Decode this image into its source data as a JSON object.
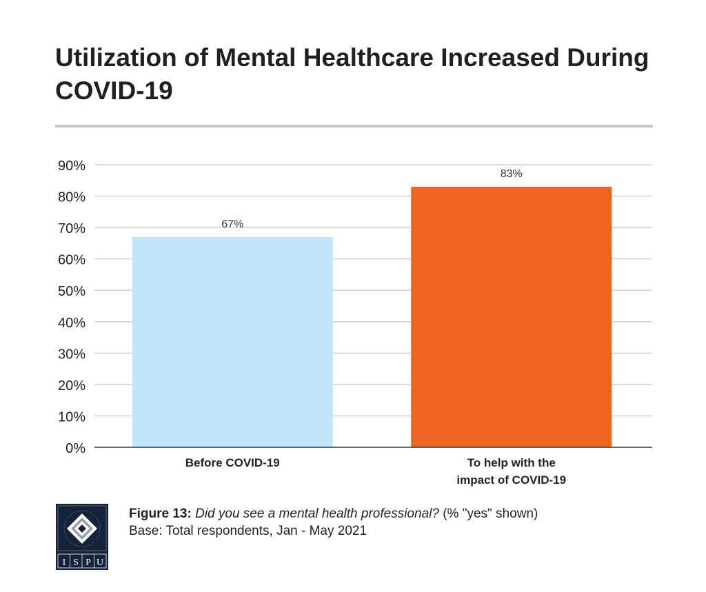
{
  "chart_data": {
    "type": "bar",
    "title": "Utilization of Mental Healthcare Increased During COVID-19",
    "categories": [
      [
        "Before COVID-19"
      ],
      [
        "To help with the",
        "impact of COVID-19"
      ]
    ],
    "values": [
      67,
      83
    ],
    "data_labels": [
      "67%",
      "83%"
    ],
    "colors": [
      "#c3e5f8",
      "#f06423"
    ],
    "ylim": [
      0,
      90
    ],
    "yticks": [
      "0%",
      "10%",
      "20%",
      "30%",
      "40%",
      "50%",
      "60%",
      "70%",
      "80%",
      "90%"
    ],
    "grid": true,
    "xlabel": "",
    "ylabel": ""
  },
  "caption": {
    "figure_label": "Figure 13:",
    "question": "Did you see a mental health professional?",
    "note": "(% \"yes\" shown)",
    "base": "Base: Total respondents, Jan - May 2021"
  },
  "logo": {
    "text": "ISPU",
    "ring_text": "INSTITUTE FOR SOCIAL POLICY AND UNDERSTANDING",
    "color": "#15223a"
  }
}
